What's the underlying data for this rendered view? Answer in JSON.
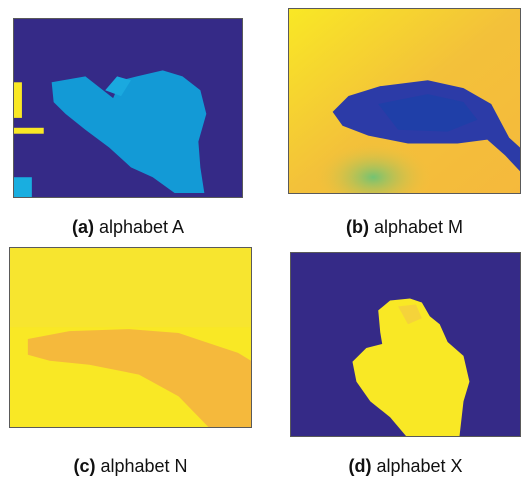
{
  "colors": {
    "deep_blue": "#352a87",
    "cyan_blue": "#139ad6",
    "light_blue": "#19aee0",
    "yellow": "#f9e825",
    "orange_yellow": "#f5b93c",
    "mid_orange": "#f3c13a",
    "green": "#73c373",
    "dark_navy": "#2c3ba7",
    "navy": "#1f3fa8"
  },
  "panels": [
    {
      "label": "(a)",
      "text": "alphabet A"
    },
    {
      "label": "(b)",
      "text": "alphabet M"
    },
    {
      "label": "(c)",
      "text": "alphabet N"
    },
    {
      "label": "(d)",
      "text": "alphabet X"
    }
  ]
}
